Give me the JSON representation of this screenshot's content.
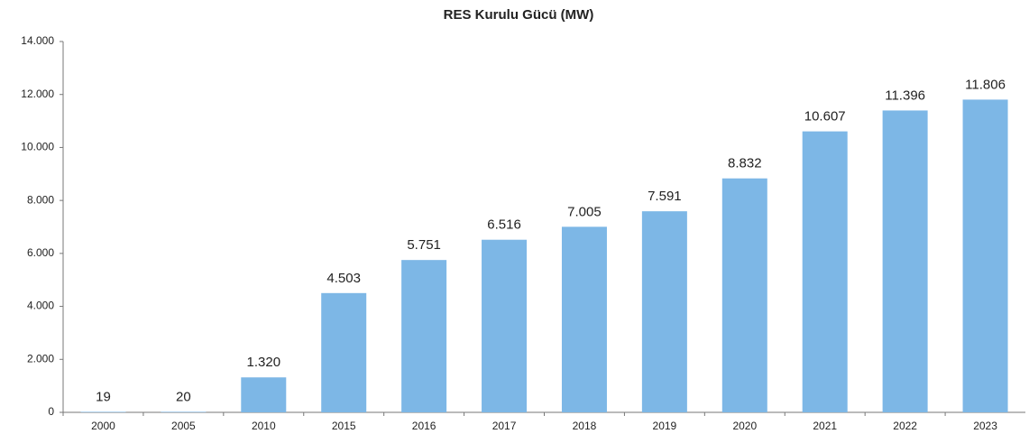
{
  "chart_data": {
    "type": "bar",
    "title": "RES Kurulu Gücü (MW)",
    "categories": [
      "2000",
      "2005",
      "2010",
      "2015",
      "2016",
      "2017",
      "2018",
      "2019",
      "2020",
      "2021",
      "2022",
      "2023"
    ],
    "values": [
      19,
      20,
      1320,
      4503,
      5751,
      6516,
      7005,
      7591,
      8832,
      10607,
      11396,
      11806
    ],
    "value_labels": [
      "19",
      "20",
      "1.320",
      "4.503",
      "5.751",
      "6.516",
      "7.005",
      "7.591",
      "8.832",
      "10.607",
      "11.396",
      "11.806"
    ],
    "color": "#7db7e6",
    "ylim": [
      0,
      14000
    ],
    "yticks": [
      0,
      {
        "value": 2000,
        "label": "2.000"
      },
      {
        "value": 4000,
        "label": "4.000"
      },
      {
        "value": 6000,
        "label": "6.000"
      },
      {
        "value": 8000,
        "label": "8.000"
      },
      {
        "value": 10000,
        "label": "10.000"
      },
      {
        "value": 12000,
        "label": "12.000"
      },
      {
        "value": 14000,
        "label": "14.000"
      }
    ],
    "grid": false
  }
}
